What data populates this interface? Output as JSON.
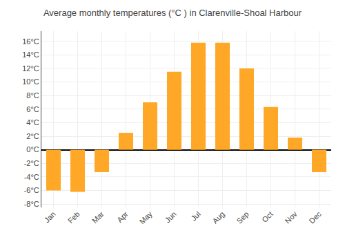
{
  "chart_data": {
    "type": "bar",
    "title": "Average monthly temperatures (°C ) in Clarenville-Shoal Harbour",
    "categories": [
      "Jan",
      "Feb",
      "Mar",
      "Apr",
      "May",
      "Jun",
      "Jul",
      "Aug",
      "Sep",
      "Oct",
      "Nov",
      "Dec"
    ],
    "values": [
      -6.0,
      -6.2,
      -3.3,
      2.5,
      7.0,
      11.5,
      15.8,
      15.8,
      12.0,
      6.3,
      1.8,
      -3.3
    ],
    "color": "#FFA726",
    "ylim": [
      -8.5,
      17.5
    ],
    "yticks": [
      {
        "value": -8,
        "label": "-8°C"
      },
      {
        "value": -6,
        "label": "-6°C"
      },
      {
        "value": -4,
        "label": "-4°C"
      },
      {
        "value": -2,
        "label": "-2°C"
      },
      {
        "value": 0,
        "label": "0°C"
      },
      {
        "value": 2,
        "label": "2°C"
      },
      {
        "value": 4,
        "label": "4°C"
      },
      {
        "value": 6,
        "label": "6°C"
      },
      {
        "value": 8,
        "label": "8°C"
      },
      {
        "value": 10,
        "label": "10°C"
      },
      {
        "value": 12,
        "label": "12°C"
      },
      {
        "value": 14,
        "label": "14°C"
      },
      {
        "value": 16,
        "label": "16°C"
      }
    ],
    "grid": true
  }
}
